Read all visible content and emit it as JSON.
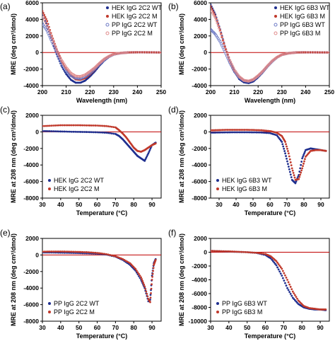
{
  "colors": {
    "blue": "#1f2f8f",
    "red": "#c0392b",
    "light_blue": "#6b78c4",
    "light_red": "#e08a8a",
    "zero": "#c00000"
  },
  "chart_data": [
    {
      "panel": "(a)",
      "type": "scatter",
      "xlabel": "Wavelength (nm)",
      "ylabel": "MRE (deg cm²/dmol)",
      "xlim": [
        200,
        250
      ],
      "ylim": [
        -4000,
        6000
      ],
      "xticks": [
        200,
        210,
        220,
        230,
        240,
        250
      ],
      "yticks": [
        -4000,
        -2000,
        0,
        2000,
        4000,
        6000
      ],
      "legend_position": "top-right",
      "zero_line": true,
      "series": [
        {
          "name": "HEK IgG 2C2 WT",
          "marker": "filled",
          "color": "#1f2f8f",
          "x": [
            200,
            202,
            204,
            206,
            208,
            210,
            212,
            214,
            216,
            218,
            220,
            222,
            224,
            226,
            228,
            230,
            233,
            236,
            240,
            245,
            250
          ],
          "y": [
            4800,
            3200,
            1500,
            -200,
            -1600,
            -2600,
            -3300,
            -3650,
            -3650,
            -3400,
            -2900,
            -2300,
            -1600,
            -1000,
            -550,
            -250,
            -80,
            0,
            30,
            20,
            0
          ]
        },
        {
          "name": "HEK IgG 2C2 M",
          "marker": "filled",
          "color": "#c0392b",
          "x": [
            200,
            202,
            204,
            206,
            208,
            210,
            212,
            214,
            216,
            218,
            220,
            222,
            224,
            226,
            228,
            230,
            233,
            236,
            240,
            245,
            250
          ],
          "y": [
            5000,
            3800,
            2000,
            400,
            -1000,
            -2000,
            -2800,
            -3250,
            -3300,
            -3100,
            -2650,
            -2100,
            -1450,
            -900,
            -500,
            -230,
            -70,
            0,
            30,
            20,
            0
          ]
        },
        {
          "name": "PP IgG 2C2 WT",
          "marker": "open",
          "color": "#6b78c4",
          "x": [
            200,
            202,
            204,
            206,
            208,
            210,
            212,
            214,
            216,
            218,
            220,
            222,
            224,
            226,
            228,
            230,
            233,
            236,
            240,
            245,
            250
          ],
          "y": [
            3500,
            2600,
            1300,
            0,
            -1300,
            -2200,
            -2800,
            -3100,
            -3150,
            -2900,
            -2500,
            -2000,
            -1400,
            -900,
            -500,
            -230,
            -70,
            0,
            30,
            20,
            0
          ]
        },
        {
          "name": "PP IgG 2C2 M",
          "marker": "open",
          "color": "#e08a8a",
          "x": [
            200,
            202,
            204,
            206,
            208,
            210,
            212,
            214,
            216,
            218,
            220,
            222,
            224,
            226,
            228,
            230,
            233,
            236,
            240,
            245,
            250
          ],
          "y": [
            4500,
            3300,
            1800,
            300,
            -900,
            -1800,
            -2500,
            -2850,
            -2900,
            -2700,
            -2300,
            -1850,
            -1300,
            -800,
            -450,
            -200,
            -60,
            0,
            30,
            20,
            0
          ]
        }
      ]
    },
    {
      "panel": "(b)",
      "type": "scatter",
      "xlabel": "Wavelength (nm)",
      "ylabel": "MRE (deg cm²/dmol)",
      "xlim": [
        200,
        250
      ],
      "ylim": [
        -4000,
        6000
      ],
      "xticks": [
        200,
        210,
        220,
        230,
        240,
        250
      ],
      "yticks": [
        -4000,
        -2000,
        0,
        2000,
        4000,
        6000
      ],
      "legend_position": "top-right",
      "zero_line": true,
      "series": [
        {
          "name": "HEK IgG 6B3 WT",
          "marker": "filled",
          "color": "#1f2f8f",
          "x": [
            200,
            202,
            204,
            206,
            208,
            210,
            212,
            214,
            216,
            218,
            220,
            222,
            224,
            226,
            228,
            230,
            233,
            236,
            240,
            245,
            250
          ],
          "y": [
            5800,
            4600,
            2800,
            800,
            -1000,
            -2300,
            -3200,
            -3600,
            -3700,
            -3500,
            -3000,
            -2400,
            -1700,
            -1100,
            -600,
            -280,
            -80,
            0,
            20,
            10,
            0
          ]
        },
        {
          "name": "HEK IgG 6B3 M",
          "marker": "filled",
          "color": "#c0392b",
          "x": [
            200,
            202,
            204,
            206,
            208,
            210,
            212,
            214,
            216,
            218,
            220,
            222,
            224,
            226,
            228,
            230,
            233,
            236,
            240,
            245,
            250
          ],
          "y": [
            5600,
            4400,
            2700,
            700,
            -1000,
            -2200,
            -3000,
            -3450,
            -3550,
            -3350,
            -2900,
            -2300,
            -1650,
            -1050,
            -580,
            -270,
            -80,
            0,
            20,
            10,
            0
          ]
        },
        {
          "name": "PP IgG 6B3 WT",
          "marker": "open",
          "color": "#6b78c4",
          "x": [
            200,
            202,
            204,
            206,
            208,
            210,
            212,
            214,
            216,
            218,
            220,
            222,
            224,
            226,
            228,
            230,
            233,
            236,
            240,
            245,
            250
          ],
          "y": [
            2800,
            2200,
            1300,
            100,
            -1200,
            -2300,
            -3000,
            -3400,
            -3500,
            -3300,
            -2850,
            -2300,
            -1650,
            -1050,
            -580,
            -270,
            -80,
            0,
            20,
            10,
            0
          ]
        },
        {
          "name": "PP IgG 6B3 M",
          "marker": "open",
          "color": "#e08a8a",
          "x": [
            200,
            202,
            204,
            206,
            208,
            210,
            212,
            214,
            216,
            218,
            220,
            222,
            224,
            226,
            228,
            230,
            233,
            236,
            240,
            245,
            250
          ],
          "y": [
            5200,
            4200,
            2600,
            700,
            -900,
            -2100,
            -2900,
            -3350,
            -3450,
            -3250,
            -2800,
            -2250,
            -1600,
            -1000,
            -560,
            -260,
            -80,
            0,
            20,
            10,
            0
          ]
        }
      ]
    },
    {
      "panel": "(c)",
      "type": "scatter",
      "xlabel": "Temperature (°C)",
      "ylabel": "MRE at 208 nm (deg cm²/dmol)",
      "xlim": [
        30,
        95
      ],
      "ylim": [
        -8000,
        2000
      ],
      "xticks": [
        30,
        40,
        50,
        60,
        70,
        80,
        90
      ],
      "yticks": [
        -8000,
        -6000,
        -4000,
        -2000,
        0,
        2000
      ],
      "legend_position": "bottom-left",
      "zero_line": true,
      "series": [
        {
          "name": "HEK IgG 2C2 WT",
          "marker": "filled",
          "color": "#1f2f8f",
          "x": [
            30,
            35,
            40,
            45,
            50,
            55,
            60,
            65,
            70,
            72,
            74,
            76,
            78,
            80,
            82,
            84,
            86,
            88,
            90,
            92
          ],
          "y": [
            100,
            80,
            50,
            20,
            0,
            -20,
            -50,
            -100,
            -250,
            -500,
            -900,
            -1400,
            -1900,
            -2400,
            -2900,
            -3200,
            -3500,
            -2600,
            -1600,
            -1300
          ]
        },
        {
          "name": "HEK IgG 2C2 M",
          "marker": "filled",
          "color": "#c0392b",
          "x": [
            30,
            35,
            40,
            45,
            50,
            55,
            60,
            65,
            70,
            72,
            74,
            76,
            78,
            80,
            82,
            84,
            86,
            88,
            90,
            92
          ],
          "y": [
            700,
            750,
            800,
            800,
            800,
            780,
            760,
            700,
            550,
            200,
            -200,
            -700,
            -1300,
            -1900,
            -2300,
            -2400,
            -2200,
            -1900,
            -1600,
            -1400
          ]
        }
      ]
    },
    {
      "panel": "(d)",
      "type": "scatter",
      "xlabel": "Temperature (°C)",
      "ylabel": "MRE at 208 nm (deg cm²/dmol)",
      "xlim": [
        25,
        95
      ],
      "ylim": [
        -8000,
        2000
      ],
      "xticks": [
        30,
        40,
        50,
        60,
        70,
        80,
        90
      ],
      "yticks": [
        -8000,
        -6000,
        -4000,
        -2000,
        0,
        2000
      ],
      "legend_position": "bottom-left",
      "zero_line": true,
      "series": [
        {
          "name": "HEK IgG 6B3 WT",
          "marker": "filled",
          "color": "#1f2f8f",
          "x": [
            25,
            30,
            35,
            40,
            45,
            50,
            55,
            60,
            64,
            67,
            69,
            71,
            73,
            75,
            77,
            79,
            81,
            84,
            87,
            90,
            93
          ],
          "y": [
            -100,
            -80,
            -60,
            -50,
            -50,
            -60,
            -80,
            -150,
            -400,
            -1200,
            -2600,
            -4200,
            -5800,
            -6200,
            -5200,
            -3200,
            -2200,
            -2000,
            -2100,
            -2200,
            -2300
          ]
        },
        {
          "name": "HEK IgG 6B3 M",
          "marker": "filled",
          "color": "#c0392b",
          "x": [
            25,
            30,
            35,
            40,
            45,
            50,
            55,
            60,
            64,
            67,
            69,
            71,
            73,
            75,
            77,
            79,
            81,
            84,
            87,
            90,
            93
          ],
          "y": [
            200,
            220,
            250,
            250,
            250,
            230,
            200,
            100,
            -100,
            -500,
            -1200,
            -2600,
            -4400,
            -5800,
            -5700,
            -4400,
            -3000,
            -2300,
            -2200,
            -2200,
            -2300
          ]
        }
      ]
    },
    {
      "panel": "(e)",
      "type": "scatter",
      "xlabel": "Temperature (°C)",
      "ylabel": "MRE at 208 nm (deg cm²/dmol)",
      "xlim": [
        30,
        95
      ],
      "ylim": [
        -8000,
        2000
      ],
      "xticks": [
        30,
        40,
        50,
        60,
        70,
        80,
        90
      ],
      "yticks": [
        -8000,
        -6000,
        -4000,
        -2000,
        0,
        2000
      ],
      "legend_position": "bottom-left",
      "zero_line": true,
      "series": [
        {
          "name": "PP IgG 2C2 WT",
          "marker": "filled",
          "color": "#1f2f8f",
          "x": [
            30,
            35,
            40,
            45,
            50,
            55,
            60,
            65,
            70,
            74,
            78,
            81,
            84,
            86,
            88,
            89,
            90,
            91,
            92
          ],
          "y": [
            300,
            300,
            280,
            260,
            230,
            200,
            150,
            50,
            -200,
            -600,
            -1200,
            -1900,
            -3000,
            -4000,
            -5600,
            -5400,
            -2500,
            -1000,
            -500
          ]
        },
        {
          "name": "PP IgG 2C2 M",
          "marker": "filled",
          "color": "#c0392b",
          "x": [
            30,
            35,
            40,
            45,
            50,
            55,
            60,
            65,
            70,
            74,
            78,
            81,
            84,
            86,
            88,
            89,
            90,
            91,
            92
          ],
          "y": [
            400,
            420,
            420,
            400,
            370,
            330,
            250,
            100,
            -150,
            -500,
            -1000,
            -1700,
            -2700,
            -3800,
            -5300,
            -5700,
            -3000,
            -1200,
            -600
          ]
        }
      ]
    },
    {
      "panel": "(f)",
      "type": "scatter",
      "xlabel": "Temperature (°C)",
      "ylabel": "MRE at 208 nm (deg cm²/dmol)",
      "xlim": [
        30,
        95
      ],
      "ylim": [
        -10000,
        2000
      ],
      "xticks": [
        30,
        40,
        50,
        60,
        70,
        80,
        90
      ],
      "yticks": [
        -10000,
        -8000,
        -6000,
        -4000,
        -2000,
        0,
        2000
      ],
      "legend_position": "bottom-left",
      "zero_line": true,
      "series": [
        {
          "name": "PP IgG 6B3 WT",
          "marker": "filled",
          "color": "#1f2f8f",
          "x": [
            30,
            35,
            40,
            45,
            50,
            55,
            60,
            63,
            66,
            69,
            72,
            75,
            78,
            81,
            84,
            87,
            90,
            93
          ],
          "y": [
            200,
            150,
            100,
            50,
            0,
            -100,
            -400,
            -900,
            -1900,
            -3400,
            -5200,
            -6600,
            -7500,
            -8000,
            -8200,
            -8300,
            -8300,
            -8400
          ]
        },
        {
          "name": "PP IgG 6B3 M",
          "marker": "filled",
          "color": "#c0392b",
          "x": [
            30,
            35,
            40,
            45,
            50,
            55,
            60,
            63,
            66,
            69,
            72,
            75,
            78,
            81,
            84,
            87,
            90,
            93
          ],
          "y": [
            200,
            150,
            120,
            60,
            0,
            -80,
            -250,
            -600,
            -1300,
            -2400,
            -4000,
            -5700,
            -7000,
            -7800,
            -8100,
            -8200,
            -8300,
            -8300
          ]
        }
      ]
    }
  ]
}
